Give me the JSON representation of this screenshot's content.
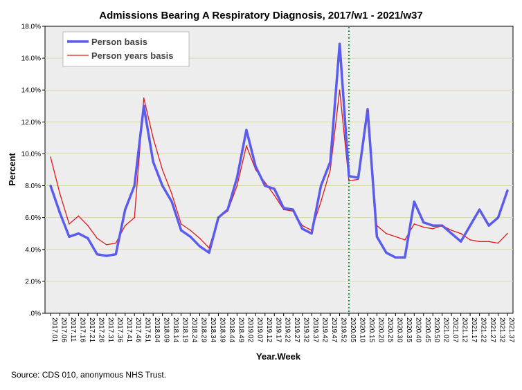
{
  "chart_data": {
    "type": "line",
    "title": "Admissions Bearing A Respiratory Diagnosis, 2017/w1 - 2021/w37",
    "xlabel": "Year.Week",
    "ylabel": "Percent",
    "source": "Source:  CDS 010, anonymous NHS Trust.",
    "ylim": [
      0,
      18
    ],
    "y_ticks": [
      "18.0%",
      "16.0%",
      "14.0%",
      "12.0%",
      "10.0%",
      "8.0%",
      "6.0%",
      "4.0%",
      "2.0%",
      ".0%"
    ],
    "categories": [
      "2017.01",
      "2017.06",
      "2017.11",
      "2017.16",
      "2017.21",
      "2017.26",
      "2017.31",
      "2017.36",
      "2017.41",
      "2017.46",
      "2017.51",
      "2018.04",
      "2018.09",
      "2018.14",
      "2018.19",
      "2018.24",
      "2018.29",
      "2018.34",
      "2018.39",
      "2018.44",
      "2018.49",
      "2019.02",
      "2019.07",
      "2019.12",
      "2019.17",
      "2019.22",
      "2019.27",
      "2019.32",
      "2019.37",
      "2019.42",
      "2019.47",
      "2019.52",
      "2020.05",
      "2020.10",
      "2020.15",
      "2020.20",
      "2020.25",
      "2020.30",
      "2020.35",
      "2020.40",
      "2020.45",
      "2020.50",
      "2021.02",
      "2021.07",
      "2021.12",
      "2021.17",
      "2021.22",
      "2021.27",
      "2021.32",
      "2021.37"
    ],
    "reference_line": {
      "label": "2020.05",
      "index": 32,
      "color": "#1a9a3a",
      "style": "dotted"
    },
    "grid": true,
    "legend_position": "top-left",
    "series": [
      {
        "name": "Person basis",
        "color": "#5b5bf0",
        "values": [
          8.0,
          6.3,
          4.8,
          5.0,
          4.7,
          3.7,
          3.6,
          3.7,
          6.5,
          8.0,
          13.0,
          9.5,
          8.0,
          7.0,
          5.2,
          4.8,
          4.2,
          3.8,
          6.0,
          6.5,
          8.5,
          11.5,
          9.2,
          8.0,
          7.8,
          6.6,
          6.5,
          5.3,
          5.0,
          8.0,
          9.5,
          16.9,
          8.6,
          8.5,
          12.8,
          4.8,
          3.8,
          3.5,
          3.5,
          7.0,
          5.7,
          5.5,
          5.5,
          5.0,
          4.5,
          5.5,
          6.5,
          5.5,
          6.0,
          7.7
        ]
      },
      {
        "name": "Person years basis",
        "color": "#e01818",
        "values": [
          9.8,
          7.5,
          5.6,
          6.1,
          5.5,
          4.7,
          4.3,
          4.4,
          5.5,
          6.0,
          13.5,
          11.0,
          9.0,
          7.5,
          5.6,
          5.2,
          4.7,
          4.1,
          6.0,
          6.4,
          8.0,
          10.5,
          9.0,
          8.2,
          7.4,
          6.5,
          6.4,
          5.5,
          5.2,
          7.0,
          9.0,
          14.0,
          8.3,
          8.4,
          12.7,
          5.5,
          5.0,
          4.8,
          4.6,
          5.6,
          5.4,
          5.3,
          5.5,
          5.2,
          5.0,
          4.6,
          4.5,
          4.5,
          4.4,
          5.0
        ]
      }
    ]
  }
}
